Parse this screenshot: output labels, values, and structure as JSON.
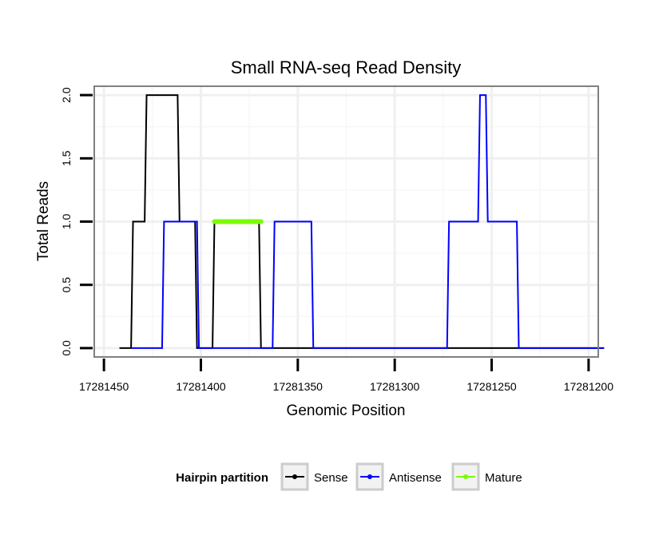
{
  "chart_data": {
    "type": "line",
    "title": "Small RNA-seq Read Density",
    "xlabel": "Genomic Position",
    "ylabel": "Total Reads",
    "xlim": [
      17281455,
      17281195
    ],
    "ylim": [
      -0.07,
      2.07
    ],
    "x_ticks": [
      17281450,
      17281400,
      17281350,
      17281300,
      17281250,
      17281200
    ],
    "x_tick_labels": [
      "17281450",
      "17281400",
      "17281350",
      "17281300",
      "17281250",
      "17281200"
    ],
    "y_ticks": [
      0,
      0.5,
      1,
      1.5,
      2
    ],
    "y_tick_labels": [
      "0.0",
      "0.5",
      "1.0",
      "1.5",
      "2.0"
    ],
    "series": [
      {
        "name": "Sense",
        "color": "#000000",
        "points": [
          [
            17281442,
            0
          ],
          [
            17281436,
            0
          ],
          [
            17281435,
            1
          ],
          [
            17281429,
            1
          ],
          [
            17281428,
            2
          ],
          [
            17281412,
            2
          ],
          [
            17281411,
            1
          ],
          [
            17281403,
            1
          ],
          [
            17281402,
            0
          ],
          [
            17281394,
            0
          ],
          [
            17281393,
            1
          ],
          [
            17281370,
            1
          ],
          [
            17281369,
            0
          ],
          [
            17281192,
            0
          ]
        ]
      },
      {
        "name": "Antisense",
        "color": "#0000ff",
        "points": [
          [
            17281436,
            0
          ],
          [
            17281420,
            0
          ],
          [
            17281419,
            1
          ],
          [
            17281402,
            1
          ],
          [
            17281401,
            0
          ],
          [
            17281363,
            0
          ],
          [
            17281362,
            1
          ],
          [
            17281343,
            1
          ],
          [
            17281342,
            0
          ],
          [
            17281273,
            0
          ],
          [
            17281272,
            1
          ],
          [
            17281257,
            1
          ],
          [
            17281256,
            2
          ],
          [
            17281253,
            2
          ],
          [
            17281252,
            1
          ],
          [
            17281237,
            1
          ],
          [
            17281236,
            0
          ],
          [
            17281192,
            0
          ]
        ]
      },
      {
        "name": "Mature",
        "color": "#7cfc00",
        "points": [
          [
            17281393,
            1
          ],
          [
            17281369,
            1
          ]
        ]
      }
    ],
    "legend": {
      "title": "Hairpin partition",
      "placement": "bottom",
      "entries": [
        "Sense",
        "Antisense",
        "Mature"
      ]
    },
    "grid": true
  }
}
